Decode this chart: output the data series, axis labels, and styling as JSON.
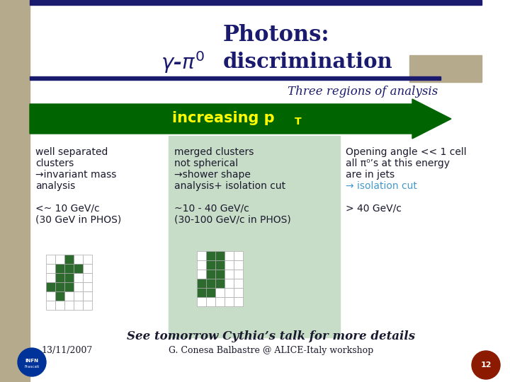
{
  "title_line1": "Photons:",
  "title_line2": "γ-π° discrimination",
  "subtitle": "Three regions of analysis",
  "arrow_text": "increasing p",
  "arrow_subscript": "T",
  "bg_color": "#ffffff",
  "title_color": "#1a1a6e",
  "arrow_color": "#006400",
  "arrow_text_color": "#ffff00",
  "middle_box_color": "#c8ddc8",
  "footer_text": "See tomorrow Cythia’s talk for more details",
  "footer_sub": "G. Conesa Balbastre @ ALICE-Italy workshop",
  "date": "13/11/2007",
  "left_bar_color": "#b5aa8c",
  "top_bar_color": "#1a1a6e",
  "green_cross_color": "#2d6a2d",
  "grid_color": "#aaaaaa",
  "link_color": "#4499cc",
  "text_color": "#1a1a2e"
}
